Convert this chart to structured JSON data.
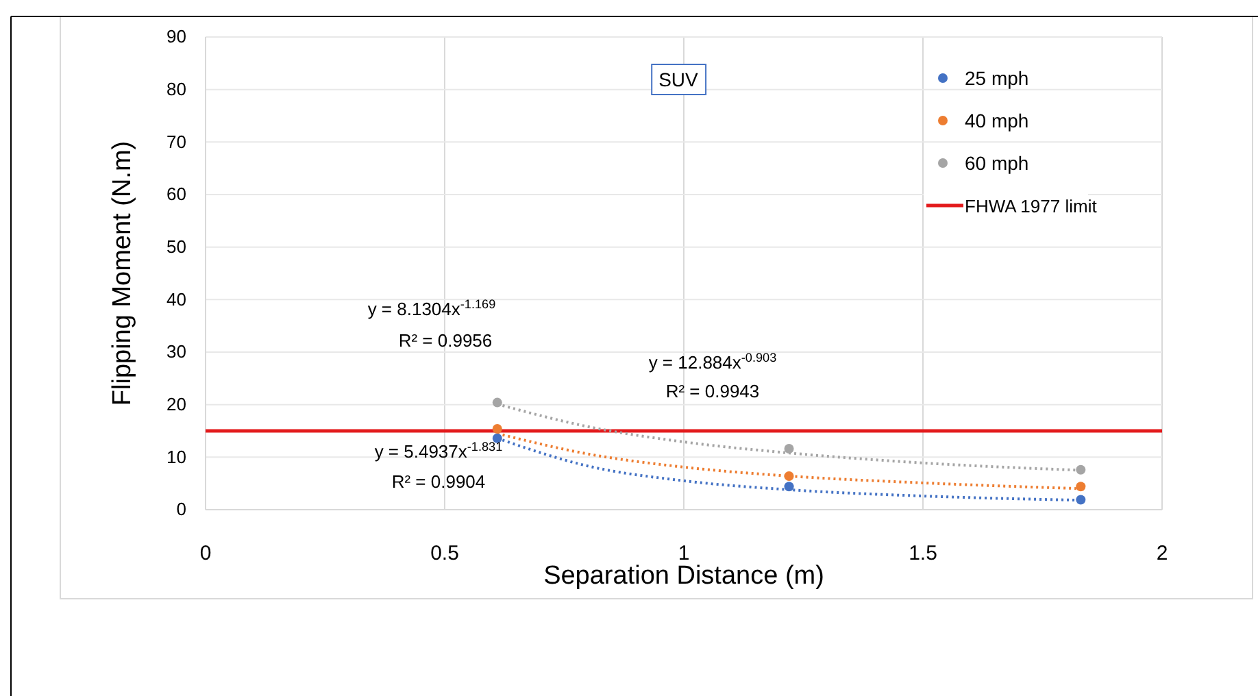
{
  "chart_data": {
    "type": "scatter",
    "title": "SUV",
    "xlabel": "Separation Distance (m)",
    "ylabel": "Flipping Moment (N.m)",
    "xlim": [
      0,
      2
    ],
    "xticks": [
      0,
      0.5,
      1,
      1.5,
      2
    ],
    "ylim": [
      0,
      90
    ],
    "yticks": [
      0,
      10,
      20,
      30,
      40,
      50,
      60,
      70,
      80,
      90
    ],
    "grid": true,
    "legend": "top right",
    "marker": "circle",
    "series": [
      {
        "name": "25 mph",
        "color": "#4472c4",
        "x": [
          0.61,
          1.22,
          1.83
        ],
        "values": [
          13.6,
          4.4,
          1.9
        ]
      },
      {
        "name": "40 mph",
        "color": "#ed7d31",
        "x": [
          0.61,
          1.22,
          1.83
        ],
        "values": [
          15.4,
          6.4,
          4.4
        ]
      },
      {
        "name": "60 mph",
        "color": "#a5a5a5",
        "x": [
          0.61,
          1.22,
          1.83
        ],
        "values": [
          20.4,
          11.6,
          7.6
        ]
      },
      {
        "type": "line",
        "line_style": "dotted",
        "marker": "none",
        "color": "#4472c4",
        "x": [
          0.61,
          0.8,
          1.0,
          1.22,
          1.5,
          1.83
        ],
        "values": [
          13.6,
          8.3,
          5.5,
          3.8,
          2.6,
          1.8
        ]
      },
      {
        "type": "line",
        "line_style": "dotted",
        "marker": "none",
        "color": "#ed7d31",
        "x": [
          0.61,
          0.8,
          1.0,
          1.22,
          1.5,
          1.83
        ],
        "values": [
          14.5,
          10.6,
          8.1,
          6.4,
          5.1,
          4.0
        ]
      },
      {
        "type": "line",
        "line_style": "dotted",
        "marker": "none",
        "color": "#a5a5a5",
        "x": [
          0.61,
          0.8,
          1.0,
          1.22,
          1.5,
          1.83
        ],
        "values": [
          20.1,
          15.8,
          12.9,
          10.8,
          8.9,
          7.5
        ]
      }
    ],
    "ref_lines": [
      {
        "axis": "y",
        "value": 15,
        "label": "FHWA 1977 limit",
        "color": "#e31a1c"
      }
    ],
    "annotations": [
      "y = 8.1304x$^{-1.169}$",
      "R² = 0.9956",
      "y = 12.884x$^{-0.903}$",
      "R² = 0.9943",
      "y = 5.4937x$^{-1.831}$",
      "R² = 0.9904"
    ]
  }
}
